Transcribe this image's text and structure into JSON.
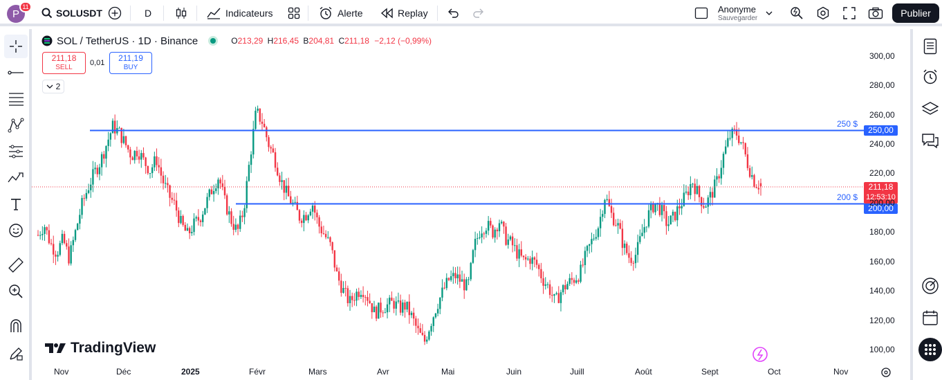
{
  "toolbar": {
    "avatar_letter": "P",
    "notifications": "11",
    "symbol": "SOLUSDT",
    "interval": "D",
    "indicators_label": "Indicateurs",
    "alert_label": "Alerte",
    "replay_label": "Replay",
    "layout_name": "Anonyme",
    "save_label": "Sauvegarder",
    "publish_label": "Publier"
  },
  "legend": {
    "title": "SOL / TetherUS · 1D · Binance",
    "o_label": "O",
    "o": "213,29",
    "h_label": "H",
    "h": "216,45",
    "b_label": "B",
    "b": "204,81",
    "c_label": "C",
    "c": "211,18",
    "change": "−2,12 (−0,99%)"
  },
  "trade": {
    "sell_price": "211,18",
    "sell_label": "SELL",
    "spread": "0,01",
    "buy_price": "211,19",
    "buy_label": "BUY"
  },
  "indicator_toggle": "2",
  "price_axis": [
    "300,00",
    "280,00",
    "260,00",
    "240,00",
    "220,00",
    "200,00",
    "180,00",
    "160,00",
    "140,00",
    "120,00",
    "100,00"
  ],
  "time_axis": [
    "Nov",
    "Déc",
    "2025",
    "Févr",
    "Mars",
    "Avr",
    "Mai",
    "Juin",
    "Juill",
    "Août",
    "Sept",
    "Oct",
    "Nov"
  ],
  "horizontal_lines": [
    {
      "label": "250 $",
      "price_tag": "250,00",
      "color": "#2962ff"
    },
    {
      "label": "200 $",
      "price_tag": "200,00",
      "color": "#2962ff"
    }
  ],
  "last_price": {
    "price": "211,18",
    "countdown": "12:53:10",
    "color": "#f23645"
  },
  "brand": "TradingView",
  "colors": {
    "up": "#089981",
    "down": "#f23645",
    "accent": "#2962ff"
  },
  "chart_data": {
    "type": "candlestick",
    "symbol": "SOL / TetherUS",
    "interval": "1D",
    "ylim": [
      95,
      305
    ],
    "x_ticks": [
      "Nov",
      "Déc",
      "2025",
      "Févr",
      "Mars",
      "Avr",
      "Mai",
      "Juin",
      "Juill",
      "Août",
      "Sept",
      "Oct",
      "Nov"
    ],
    "approx_close_series": [
      178,
      185,
      172,
      166,
      175,
      162,
      180,
      198,
      210,
      220,
      228,
      240,
      252,
      248,
      240,
      232,
      236,
      228,
      222,
      230,
      215,
      205,
      198,
      185,
      178,
      185,
      190,
      200,
      210,
      218,
      200,
      188,
      180,
      195,
      230,
      262,
      255,
      240,
      230,
      215,
      205,
      198,
      190,
      192,
      200,
      185,
      178,
      170,
      150,
      140,
      132,
      138,
      142,
      135,
      125,
      128,
      130,
      132,
      128,
      130,
      122,
      112,
      105,
      118,
      130,
      140,
      148,
      150,
      146,
      142,
      170,
      182,
      185,
      180,
      188,
      176,
      172,
      165,
      160,
      162,
      158,
      148,
      142,
      132,
      140,
      145,
      148,
      152,
      165,
      175,
      185,
      205,
      192,
      185,
      170,
      162,
      165,
      180,
      192,
      200,
      195,
      185,
      190,
      198,
      205,
      215,
      205,
      198,
      205,
      215,
      232,
      245,
      248,
      240,
      225,
      214,
      211.18
    ],
    "open": 213.29,
    "high": 216.45,
    "low": 204.81,
    "close": 211.18,
    "hlines": [
      250,
      200
    ]
  }
}
